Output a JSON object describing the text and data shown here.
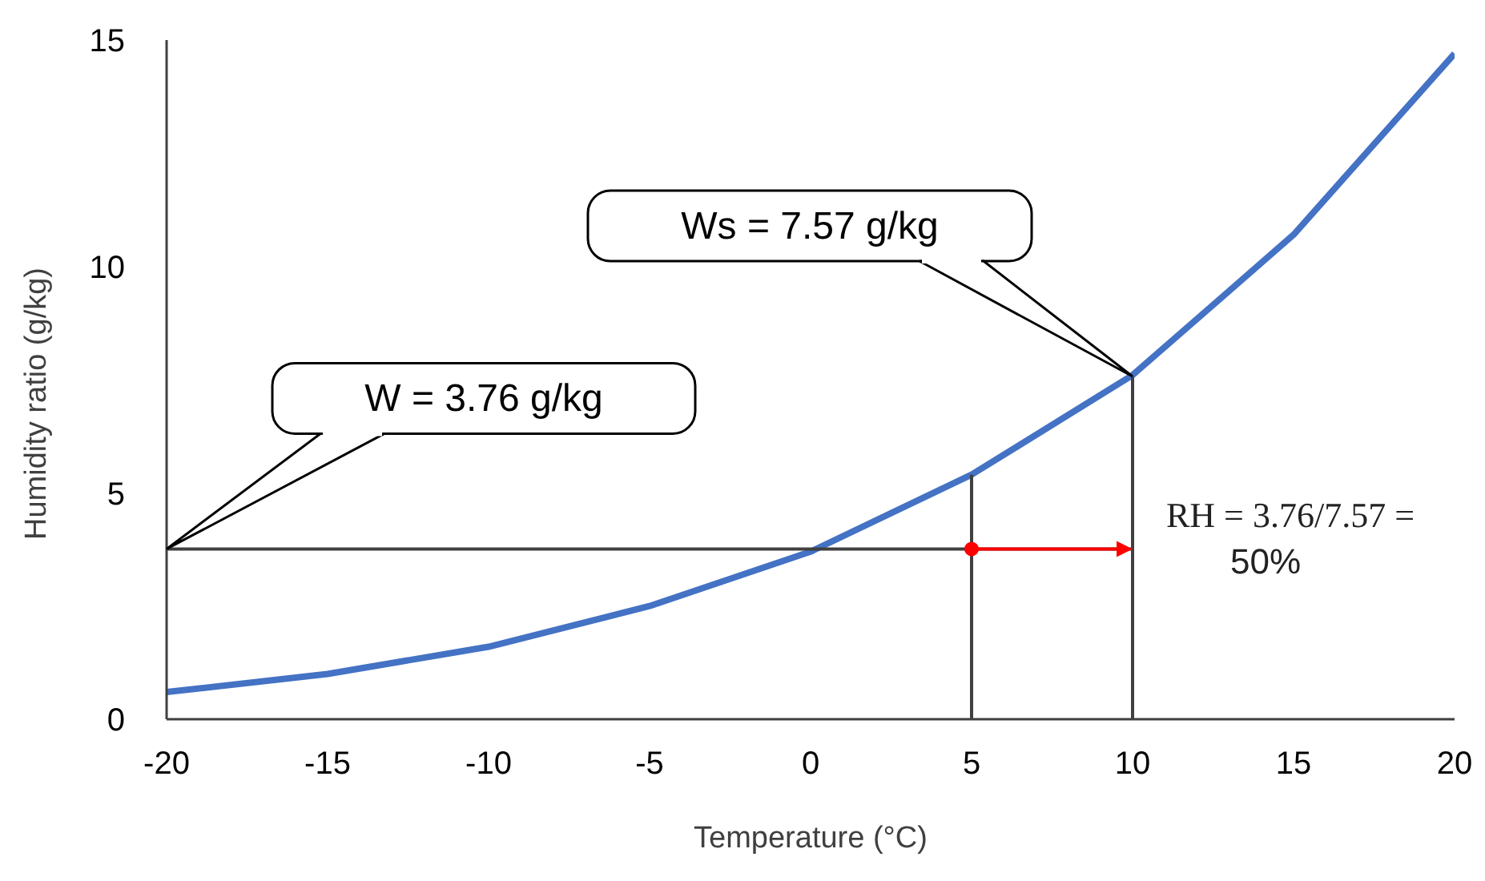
{
  "chart_data": {
    "type": "line",
    "xlabel": "Temperature (°C)",
    "ylabel": "Humidity ratio (g/kg)",
    "xlim": [
      -20,
      20
    ],
    "xticks": [
      -20,
      -15,
      -10,
      -5,
      0,
      5,
      10,
      15,
      20
    ],
    "ylim": [
      0,
      15
    ],
    "yticks": [
      0,
      5,
      10,
      15
    ],
    "grid": false,
    "series": [
      {
        "color": "#4472c4",
        "marker": "none",
        "x": [
          -20,
          -15,
          -10,
          -5,
          0,
          5,
          10,
          15,
          20
        ],
        "values": [
          0.6,
          1.0,
          1.6,
          2.5,
          3.7,
          5.4,
          7.6,
          10.7,
          14.7
        ]
      },
      {
        "color": "#404040",
        "marker": "none",
        "x": [
          -20,
          10
        ],
        "values": [
          3.76,
          3.76
        ]
      },
      {
        "color": "#404040",
        "marker": "none",
        "x": [
          5,
          5
        ],
        "values": [
          0,
          5.4
        ]
      },
      {
        "color": "#404040",
        "marker": "none",
        "x": [
          10,
          10
        ],
        "values": [
          0,
          7.57
        ]
      },
      {
        "type": "scatter",
        "color": "#ff0000",
        "marker": "circle",
        "x": [
          5
        ],
        "values": [
          3.76
        ]
      }
    ],
    "annotations": [
      "W = 3.76 g/kg",
      "Ws = 7.57 g/kg",
      "RH = 3.76/7.57 = 50%"
    ]
  }
}
